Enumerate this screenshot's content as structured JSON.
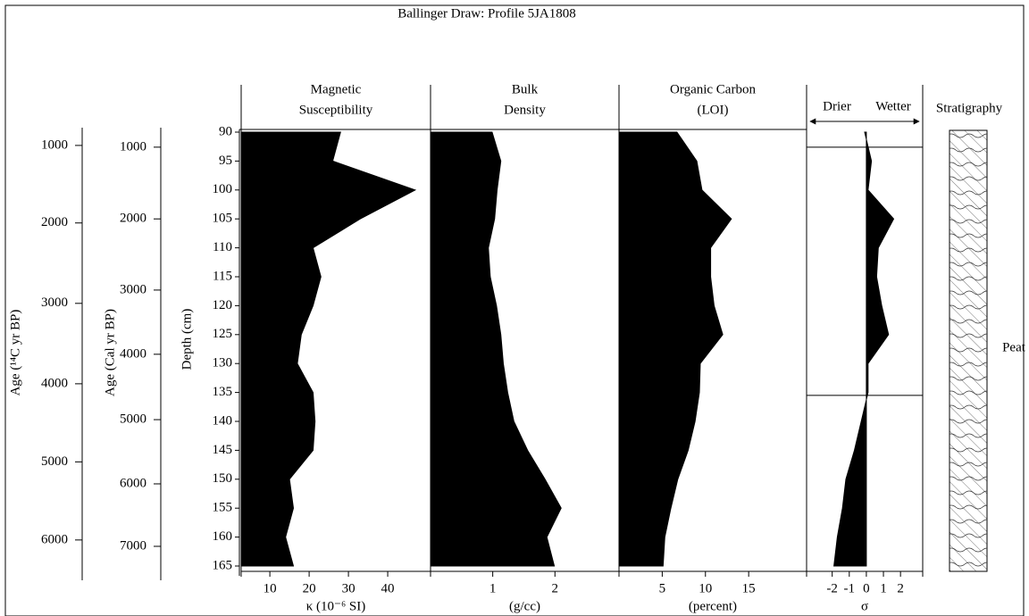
{
  "chart_data": {
    "type": "stratigraphic-profile",
    "title": "Ballinger Draw: Profile 5JA1808",
    "ylabel": "Depth (cm)",
    "ylim": [
      90,
      165
    ],
    "yticks": [
      90,
      95,
      100,
      105,
      110,
      115,
      120,
      125,
      130,
      135,
      140,
      145,
      150,
      155,
      160,
      165
    ],
    "depths": [
      90,
      95,
      100,
      105,
      110,
      115,
      120,
      125,
      130,
      135,
      140,
      145,
      150,
      155,
      160,
      165
    ],
    "age_axes": [
      {
        "label": "Age (¹⁴C yr BP)",
        "ticks": [
          1000,
          2000,
          3000,
          4000,
          5000,
          6000
        ],
        "tick_depths": [
          92.3,
          105.7,
          119.6,
          133.5,
          147.0,
          160.5
        ]
      },
      {
        "label": "Age (Cal yr BP)",
        "ticks": [
          1000,
          2000,
          3000,
          4000,
          5000,
          6000,
          7000
        ],
        "tick_depths": [
          92.6,
          105.0,
          117.3,
          128.4,
          139.7,
          150.8,
          161.6
        ]
      }
    ],
    "panels": [
      {
        "type": "area",
        "title": [
          "Magnetic",
          "Susceptibility"
        ],
        "xlabel": "κ (10⁻⁶ SI)",
        "color": "#000000",
        "xlim": [
          2.7,
          50.9
        ],
        "xticks": [
          10,
          20,
          30,
          40
        ],
        "values": [
          28,
          26,
          47,
          33,
          21,
          23,
          21,
          18,
          17,
          21,
          21.5,
          21,
          15,
          16,
          14,
          16
        ]
      },
      {
        "type": "area",
        "title": [
          "Bulk",
          "Density"
        ],
        "xlabel": "(g/cc)",
        "color": "#000000",
        "xlim": [
          0,
          3.03
        ],
        "xticks": [
          1,
          2
        ],
        "values": [
          0.99,
          1.13,
          1.07,
          1.03,
          0.93,
          0.96,
          1.06,
          1.13,
          1.17,
          1.24,
          1.34,
          1.56,
          1.84,
          2.1,
          1.87,
          1.99
        ]
      },
      {
        "type": "area",
        "title": [
          "Organic Carbon",
          "(LOI)"
        ],
        "xlabel": "(percent)",
        "color": "#000000",
        "xlim": [
          0,
          21.7
        ],
        "xticks": [
          5,
          10,
          15
        ],
        "values": [
          6.7,
          9.0,
          9.6,
          13.0,
          10.6,
          10.6,
          11.0,
          12.0,
          9.4,
          9.3,
          8.8,
          8.0,
          6.8,
          6.0,
          5.3,
          5.1
        ]
      },
      {
        "type": "area",
        "header_left": "Drier",
        "header_right": "Wetter",
        "xlabel": "σ",
        "color": "#000000",
        "xlim": [
          -3.5,
          3.3
        ],
        "xticks": [
          -2,
          -1,
          0,
          1,
          2
        ],
        "zone_depths": [
          92.6,
          135.5
        ],
        "values": [
          -0.1,
          0.3,
          0.1,
          1.6,
          0.7,
          0.6,
          0.9,
          1.3,
          0.1,
          0.1,
          -0.3,
          -0.7,
          -1.2,
          -1.4,
          -1.7,
          -1.9
        ]
      }
    ],
    "stratigraphy": {
      "title": "Stratigraphy",
      "label": "Peat"
    }
  }
}
